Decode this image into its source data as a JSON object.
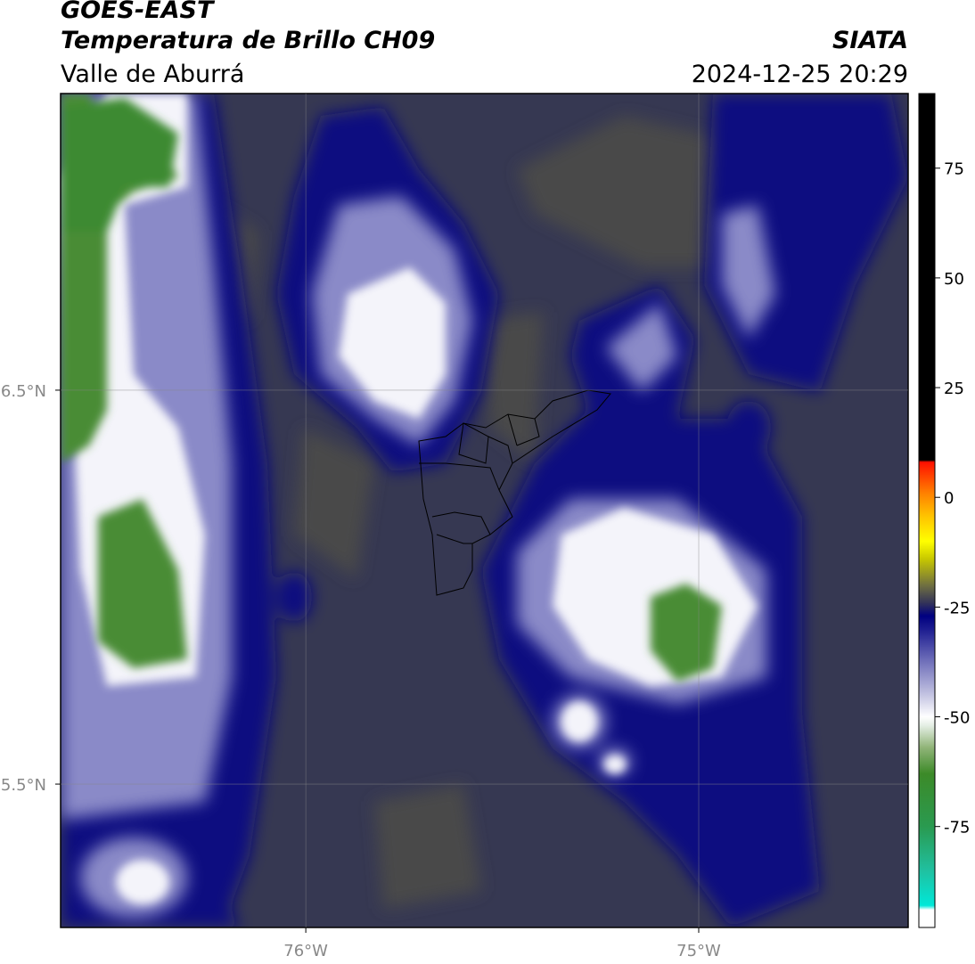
{
  "header": {
    "title": "GOES-EAST",
    "subtitle": "Temperatura de Brillo CH09",
    "region": "Valle de Aburrá",
    "source": "SIATA",
    "datetime": "2024-12-25 20:29"
  },
  "map": {
    "xlim": [
      -76.624,
      -74.467
    ],
    "ylim": [
      5.136,
      7.253
    ],
    "xticks": [
      {
        "value": -76,
        "label": "76°W"
      },
      {
        "value": -75,
        "label": "75°W"
      }
    ],
    "yticks": [
      {
        "value": 6.5,
        "label": "6.5°N"
      },
      {
        "value": 5.5,
        "label": "5.5°N"
      }
    ],
    "grid": true
  },
  "colorbar": {
    "lim": [
      -98,
      92
    ],
    "ticks": [
      75,
      50,
      25,
      0,
      -25,
      -50,
      -75
    ],
    "stops": [
      {
        "value": -98,
        "color": "#ffffff"
      },
      {
        "value": -94,
        "color": "#ffffff"
      },
      {
        "value": -93,
        "color": "#00e8d8"
      },
      {
        "value": -85,
        "color": "#20c0a0"
      },
      {
        "value": -75,
        "color": "#2a9a50"
      },
      {
        "value": -63,
        "color": "#3c8a28"
      },
      {
        "value": -57,
        "color": "#90b478"
      },
      {
        "value": -52,
        "color": "#e4eee4"
      },
      {
        "value": -50,
        "color": "#ffffff"
      },
      {
        "value": -45,
        "color": "#c4c4e2"
      },
      {
        "value": -37,
        "color": "#6c6cb8"
      },
      {
        "value": -30,
        "color": "#1c1c90"
      },
      {
        "value": -27,
        "color": "#000080"
      },
      {
        "value": -24,
        "color": "#343458"
      },
      {
        "value": -20,
        "color": "#707040"
      },
      {
        "value": -14,
        "color": "#c8c800"
      },
      {
        "value": -10,
        "color": "#ffff00"
      },
      {
        "value": -4,
        "color": "#ffc000"
      },
      {
        "value": 1,
        "color": "#ff8000"
      },
      {
        "value": 8,
        "color": "#ff1000"
      },
      {
        "value": 8.5,
        "color": "#000000"
      },
      {
        "value": 92,
        "color": "#000000"
      }
    ]
  }
}
